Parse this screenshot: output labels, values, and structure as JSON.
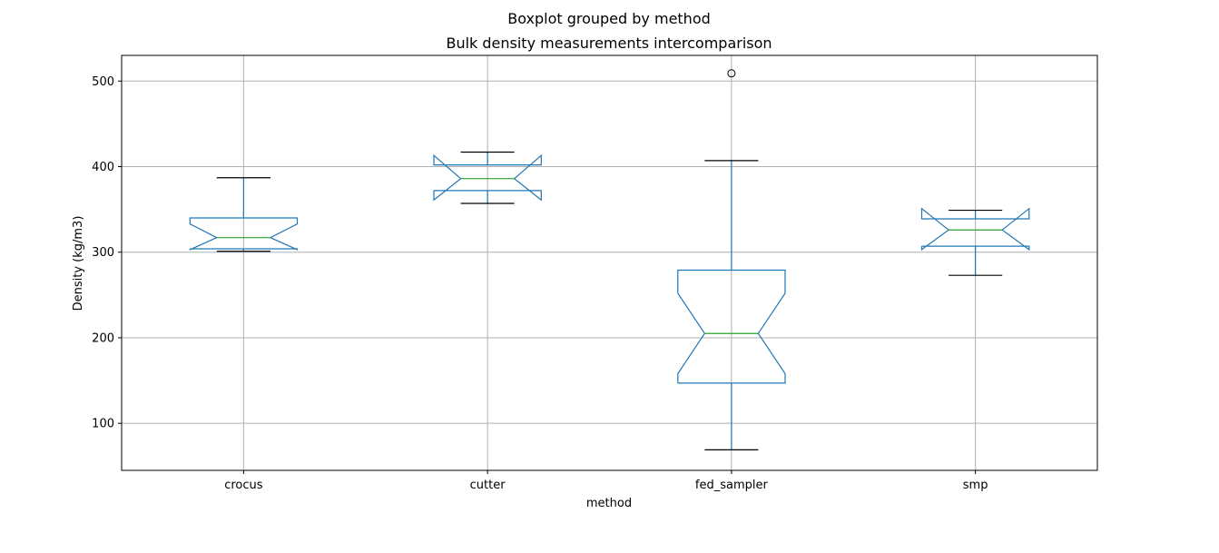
{
  "chart_data": {
    "type": "boxplot",
    "suptitle": "Boxplot grouped by method",
    "title": "Bulk density measurements intercomparison",
    "xlabel": "method",
    "ylabel": "Density (kg/m3)",
    "ylim": [
      45,
      530
    ],
    "yticks": [
      100,
      200,
      300,
      400,
      500
    ],
    "grid": true,
    "notched": true,
    "colors": {
      "box": "#1f77b4",
      "median": "#2ca02c",
      "whisker": "#1f77b4",
      "cap": "#000000",
      "grid": "#b0b0b0"
    },
    "categories": [
      "crocus",
      "cutter",
      "fed_sampler",
      "smp"
    ],
    "boxes": [
      {
        "label": "crocus",
        "whislo": 301,
        "q1": 304,
        "med": 317,
        "q3": 340,
        "whishi": 387,
        "cilo": 303,
        "cihi": 333,
        "fliers": []
      },
      {
        "label": "cutter",
        "whislo": 357,
        "q1": 372,
        "med": 386,
        "q3": 402,
        "whishi": 417,
        "cilo": 361,
        "cihi": 413,
        "fliers": []
      },
      {
        "label": "fed_sampler",
        "whislo": 69,
        "q1": 147,
        "med": 205,
        "q3": 279,
        "whishi": 407,
        "cilo": 158,
        "cihi": 252,
        "fliers": [
          509
        ]
      },
      {
        "label": "smp",
        "whislo": 273,
        "q1": 307,
        "med": 326,
        "q3": 339,
        "whishi": 349,
        "cilo": 303,
        "cihi": 351,
        "fliers": []
      }
    ]
  }
}
